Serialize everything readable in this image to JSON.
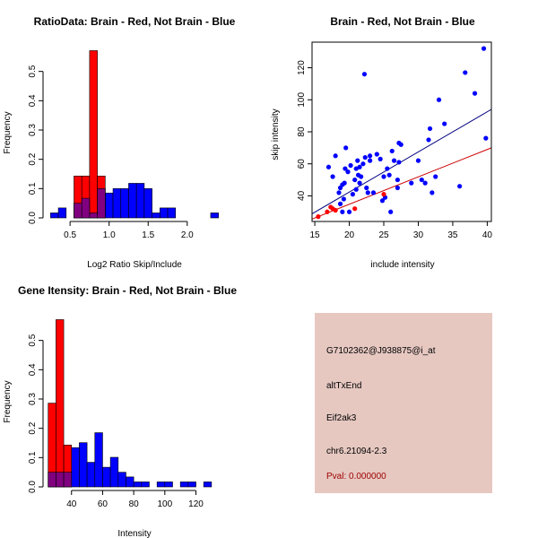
{
  "colors": {
    "red": "#ff0000",
    "blue": "#0000ff",
    "overlap": "#800080",
    "fit_blue": "#000080",
    "fit_red": "#cc0000",
    "infobox_bg": "#e6c8c1"
  },
  "chart_data": [
    {
      "type": "bar",
      "name": "ratio-histogram",
      "title": "RatioData: Brain - Red, Not Brain - Blue",
      "xlabel": "Log2 Ratio Skip/Include",
      "ylabel": "Frequency",
      "xlim": [
        0.2,
        2.45
      ],
      "ylim": [
        0,
        0.6
      ],
      "xticks": [
        0.5,
        1.0,
        1.5,
        2.0
      ],
      "xtick_labels": [
        "0.5",
        "1.0",
        "1.5",
        "2.0"
      ],
      "yticks": [
        0.0,
        0.1,
        0.2,
        0.3,
        0.4,
        0.5
      ],
      "ytick_labels": [
        "0.0",
        "0.1",
        "0.2",
        "0.3",
        "0.4",
        "0.5"
      ],
      "series": [
        {
          "name": "Not Brain",
          "color": "blue",
          "bins": [
            [
              0.25,
              0.35,
              0.017
            ],
            [
              0.35,
              0.45,
              0.034
            ],
            [
              0.55,
              0.65,
              0.05
            ],
            [
              0.65,
              0.75,
              0.067
            ],
            [
              0.75,
              0.85,
              0.017
            ],
            [
              0.85,
              0.95,
              0.1
            ],
            [
              0.95,
              1.05,
              0.085
            ],
            [
              1.05,
              1.15,
              0.1
            ],
            [
              1.15,
              1.25,
              0.1
            ],
            [
              1.25,
              1.35,
              0.118
            ],
            [
              1.35,
              1.45,
              0.118
            ],
            [
              1.45,
              1.55,
              0.1
            ],
            [
              1.55,
              1.65,
              0.017
            ],
            [
              1.65,
              1.75,
              0.034
            ],
            [
              1.75,
              1.85,
              0.034
            ],
            [
              2.3,
              2.4,
              0.017
            ]
          ]
        },
        {
          "name": "Brain",
          "color": "red",
          "bins": [
            [
              0.55,
              0.65,
              0.143
            ],
            [
              0.65,
              0.75,
              0.143
            ],
            [
              0.75,
              0.85,
              0.571
            ],
            [
              0.85,
              0.95,
              0.143
            ]
          ]
        }
      ]
    },
    {
      "type": "scatter",
      "name": "intensity-scatter",
      "title": "Brain - Red, Not Brain - Blue",
      "xlabel": "include intensity",
      "ylabel": "skip intensity",
      "xlim": [
        14.6,
        40.6
      ],
      "ylim": [
        24,
        136
      ],
      "xticks": [
        15,
        20,
        25,
        30,
        35,
        40
      ],
      "xtick_labels": [
        "15",
        "20",
        "25",
        "30",
        "35",
        "40"
      ],
      "yticks": [
        40,
        60,
        80,
        100,
        120
      ],
      "ytick_labels": [
        "40",
        "60",
        "80",
        "100",
        "120"
      ],
      "series": [
        {
          "name": "Not Brain",
          "color": "blue",
          "fit": [
            14.6,
            28.8,
            40.6,
            94
          ],
          "points": [
            [
              17.0,
              58
            ],
            [
              17.6,
              52
            ],
            [
              18.0,
              65
            ],
            [
              18.5,
              42
            ],
            [
              18.7,
              35
            ],
            [
              19.0,
              30
            ],
            [
              19.2,
              38
            ],
            [
              19.4,
              57
            ],
            [
              19.5,
              70
            ],
            [
              19.8,
              55
            ],
            [
              19.0,
              47
            ],
            [
              19.3,
              48
            ],
            [
              18.7,
              45
            ],
            [
              20.0,
              30
            ],
            [
              20.2,
              59
            ],
            [
              20.5,
              41
            ],
            [
              20.8,
              50
            ],
            [
              21.0,
              44
            ],
            [
              21.0,
              57
            ],
            [
              21.2,
              62
            ],
            [
              21.3,
              53
            ],
            [
              21.5,
              58
            ],
            [
              21.5,
              48
            ],
            [
              21.7,
              52
            ],
            [
              22.0,
              60
            ],
            [
              22.2,
              116
            ],
            [
              22.3,
              64
            ],
            [
              22.5,
              45
            ],
            [
              22.7,
              42
            ],
            [
              23.0,
              65
            ],
            [
              23.0,
              62
            ],
            [
              23.5,
              42
            ],
            [
              24.0,
              66
            ],
            [
              24.5,
              63
            ],
            [
              24.8,
              37
            ],
            [
              25.0,
              52
            ],
            [
              25.2,
              39
            ],
            [
              25.5,
              57
            ],
            [
              25.8,
              53
            ],
            [
              26.0,
              30
            ],
            [
              26.2,
              68
            ],
            [
              26.5,
              62
            ],
            [
              27.0,
              50
            ],
            [
              27.2,
              73
            ],
            [
              27.5,
              72
            ],
            [
              27.2,
              61
            ],
            [
              27.0,
              45
            ],
            [
              29.0,
              48
            ],
            [
              30.0,
              62
            ],
            [
              30.5,
              50
            ],
            [
              31.0,
              48
            ],
            [
              31.5,
              75
            ],
            [
              31.7,
              82
            ],
            [
              32.0,
              42
            ],
            [
              32.5,
              52
            ],
            [
              33.0,
              100
            ],
            [
              33.8,
              85
            ],
            [
              36.0,
              46
            ],
            [
              36.8,
              117
            ],
            [
              38.2,
              104
            ],
            [
              39.5,
              132
            ],
            [
              39.8,
              76
            ]
          ]
        },
        {
          "name": "Brain",
          "color": "red",
          "fit": [
            14.6,
            25.5,
            40.6,
            70
          ],
          "points": [
            [
              15.5,
              27
            ],
            [
              16.8,
              30
            ],
            [
              17.3,
              33
            ],
            [
              17.6,
              32
            ],
            [
              18.0,
              31
            ],
            [
              20.8,
              32
            ],
            [
              25.0,
              41
            ]
          ]
        }
      ]
    },
    {
      "type": "bar",
      "name": "gene-intensity-histogram",
      "title": "Gene Itensity: Brain - Red, Not Brain - Blue",
      "xlabel": "Intensity",
      "ylabel": "Frequency",
      "xlim": [
        24,
        137
      ],
      "ylim": [
        0,
        0.6
      ],
      "xticks": [
        40,
        60,
        80,
        100,
        120
      ],
      "xtick_labels": [
        "40",
        "60",
        "80",
        "100",
        "120"
      ],
      "yticks": [
        0.0,
        0.1,
        0.2,
        0.3,
        0.4,
        0.5
      ],
      "ytick_labels": [
        "0.0",
        "0.1",
        "0.2",
        "0.3",
        "0.4",
        "0.5"
      ],
      "series": [
        {
          "name": "Not Brain",
          "color": "blue",
          "bins": [
            [
              25,
              30,
              0.05
            ],
            [
              30,
              35,
              0.05
            ],
            [
              35,
              40,
              0.05
            ],
            [
              40,
              45,
              0.134
            ],
            [
              45,
              50,
              0.151
            ],
            [
              50,
              55,
              0.084
            ],
            [
              55,
              60,
              0.185
            ],
            [
              60,
              65,
              0.067
            ],
            [
              65,
              70,
              0.101
            ],
            [
              70,
              75,
              0.05
            ],
            [
              75,
              80,
              0.034
            ],
            [
              80,
              85,
              0.017
            ],
            [
              85,
              90,
              0.017
            ],
            [
              95,
              100,
              0.017
            ],
            [
              100,
              105,
              0.017
            ],
            [
              110,
              115,
              0.017
            ],
            [
              115,
              120,
              0.017
            ],
            [
              125,
              130,
              0.017
            ]
          ]
        },
        {
          "name": "Brain",
          "color": "red",
          "bins": [
            [
              25,
              30,
              0.286
            ],
            [
              30,
              35,
              0.571
            ],
            [
              35,
              40,
              0.143
            ]
          ]
        }
      ]
    }
  ],
  "info": {
    "probe": "G7102362@J938875@i_at",
    "event": "altTxEnd",
    "gene": "Eif2ak3",
    "location": "chr6.21094-2.3",
    "pval": "Pval: 0.000000"
  }
}
